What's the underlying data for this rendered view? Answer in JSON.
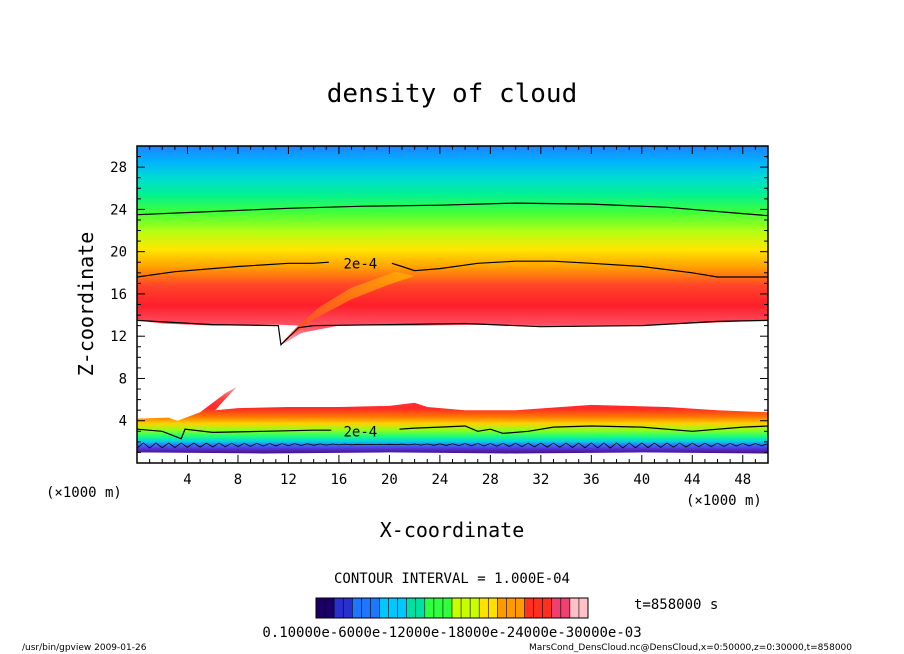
{
  "chart_data": {
    "type": "heatmap",
    "title": "density of cloud",
    "xlabel": "X-coordinate",
    "ylabel": "Z-coordinate",
    "x_unit": "(×1000 m)",
    "z_unit": "(×1000 m)",
    "xlim": [
      0,
      50
    ],
    "ylim": [
      0,
      30
    ],
    "x_ticks": [
      4,
      8,
      12,
      16,
      20,
      24,
      28,
      32,
      36,
      40,
      44,
      48
    ],
    "y_ticks": [
      4,
      8,
      12,
      16,
      20,
      24,
      28
    ],
    "contour_labels": [
      "2e-4",
      "2e-4"
    ],
    "contour_interval": "CONTOUR INTERVAL = 1.000E-04",
    "time_label": "t=858000 s",
    "colorbar_labels": "0.10000e-6000e-12000e-18000e-24000e-30000e-03",
    "colormap": [
      "#1a0066",
      "#2a30d0",
      "#1e78ff",
      "#00c8ff",
      "#00e0a0",
      "#30ff40",
      "#c8ff00",
      "#ffe000",
      "#ff9a00",
      "#ff3020",
      "#f04070",
      "#ffc0c8"
    ]
  },
  "footer": {
    "left": "/usr/bin/gpview   2009-01-26",
    "right": "MarsCond_DensCloud.nc@DensCloud,x=0:50000,z=0:30000,t=858000"
  }
}
